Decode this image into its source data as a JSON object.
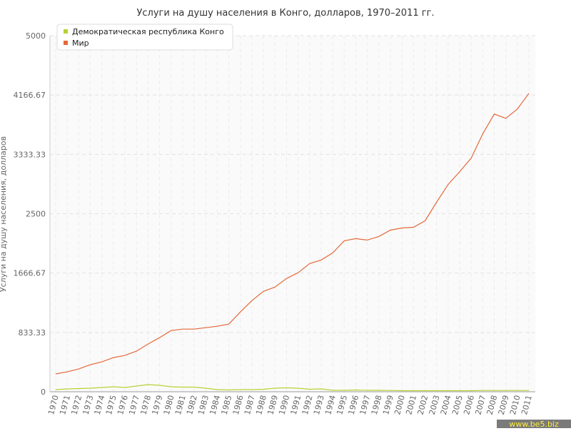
{
  "chart_data": {
    "type": "line",
    "title": "Услуги на душу населения в Конго, долларов, 1970–2011 гг.",
    "y_label": "Услуги на душу населения, долларов",
    "watermark": "www.be5.biz",
    "categories": [
      "1970",
      "1971",
      "1972",
      "1973",
      "1974",
      "1975",
      "1976",
      "1977",
      "1978",
      "1979",
      "1980",
      "1981",
      "1982",
      "1983",
      "1984",
      "1985",
      "1986",
      "1987",
      "1988",
      "1989",
      "1990",
      "1991",
      "1992",
      "1993",
      "1994",
      "1995",
      "1996",
      "1997",
      "1998",
      "1999",
      "2000",
      "2001",
      "2002",
      "2003",
      "2004",
      "2005",
      "2006",
      "2007",
      "2008",
      "2009",
      "2010",
      "2011"
    ],
    "series": [
      {
        "name": "Демократическая республика Конго",
        "color": "#b5d334",
        "values": [
          30,
          40,
          45,
          50,
          60,
          70,
          60,
          80,
          100,
          90,
          70,
          65,
          65,
          50,
          30,
          25,
          30,
          30,
          35,
          50,
          55,
          50,
          35,
          40,
          20,
          20,
          25,
          20,
          20,
          18,
          15,
          15,
          15,
          15,
          15,
          15,
          15,
          18,
          18,
          18,
          18,
          18
        ]
      },
      {
        "name": "Мир",
        "color": "#e5683a",
        "values": [
          250,
          280,
          320,
          380,
          420,
          480,
          510,
          570,
          670,
          760,
          860,
          880,
          880,
          900,
          920,
          950,
          1120,
          1280,
          1410,
          1470,
          1590,
          1670,
          1800,
          1850,
          1950,
          2120,
          2150,
          2130,
          2180,
          2270,
          2300,
          2310,
          2400,
          2660,
          2910,
          3090,
          3280,
          3620,
          3900,
          3840,
          3970,
          4190
        ]
      }
    ],
    "ylim": [
      0,
      5000
    ],
    "yticks": [
      0,
      833.33,
      1666.67,
      2500,
      3333.33,
      4166.67,
      5000
    ],
    "grid": true
  }
}
